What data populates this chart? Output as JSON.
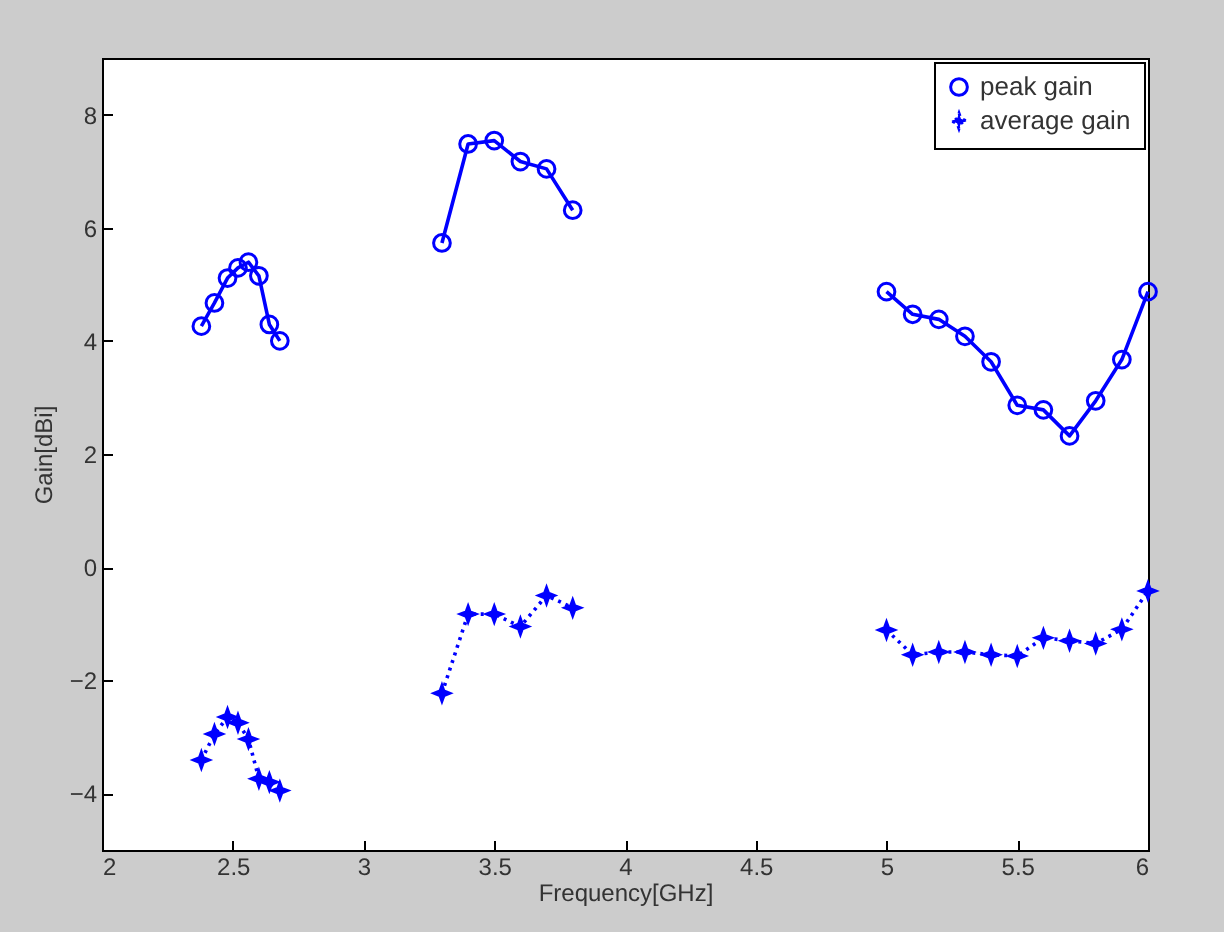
{
  "chart_data": {
    "type": "line",
    "xlabel": "Frequency[GHz]",
    "ylabel": "Gain[dBi]",
    "x": [
      2.38,
      2.43,
      2.48,
      2.52,
      2.56,
      2.6,
      2.64,
      2.68,
      3.0,
      3.3,
      3.4,
      3.5,
      3.6,
      3.7,
      3.8,
      4.4,
      5.0,
      5.1,
      5.2,
      5.3,
      5.4,
      5.5,
      5.6,
      5.7,
      5.8,
      5.9,
      6.0
    ],
    "series": [
      {
        "name": "peak gain",
        "color": "#0000ff",
        "marker": "circle",
        "line_style": "solid",
        "values": [
          4.26,
          4.67,
          5.11,
          5.29,
          5.39,
          5.15,
          4.29,
          4.0,
          null,
          5.73,
          7.48,
          7.54,
          7.17,
          7.04,
          6.31,
          null,
          4.87,
          4.47,
          4.38,
          4.08,
          3.63,
          2.86,
          2.78,
          2.32,
          2.94,
          3.67,
          4.87
        ]
      },
      {
        "name": "average gain",
        "color": "#0000ff",
        "marker": "star",
        "line_style": "dotted",
        "values": [
          -3.41,
          -2.95,
          -2.65,
          -2.75,
          -3.04,
          -3.74,
          -3.8,
          -3.95,
          null,
          -2.23,
          -0.83,
          -0.83,
          -1.05,
          -0.5,
          -0.72,
          null,
          -1.11,
          -1.55,
          -1.5,
          -1.5,
          -1.55,
          -1.57,
          -1.25,
          -1.3,
          -1.35,
          -1.1,
          -0.42
        ]
      }
    ],
    "xlim": [
      2,
      6
    ],
    "xticks": [
      2,
      2.5,
      3,
      3.5,
      4,
      4.5,
      5,
      5.5,
      6
    ],
    "ylim": [
      -5,
      9
    ],
    "yticks": [
      -4,
      -2,
      0,
      2,
      4,
      6,
      8
    ],
    "grid": false,
    "legend": "top right"
  }
}
